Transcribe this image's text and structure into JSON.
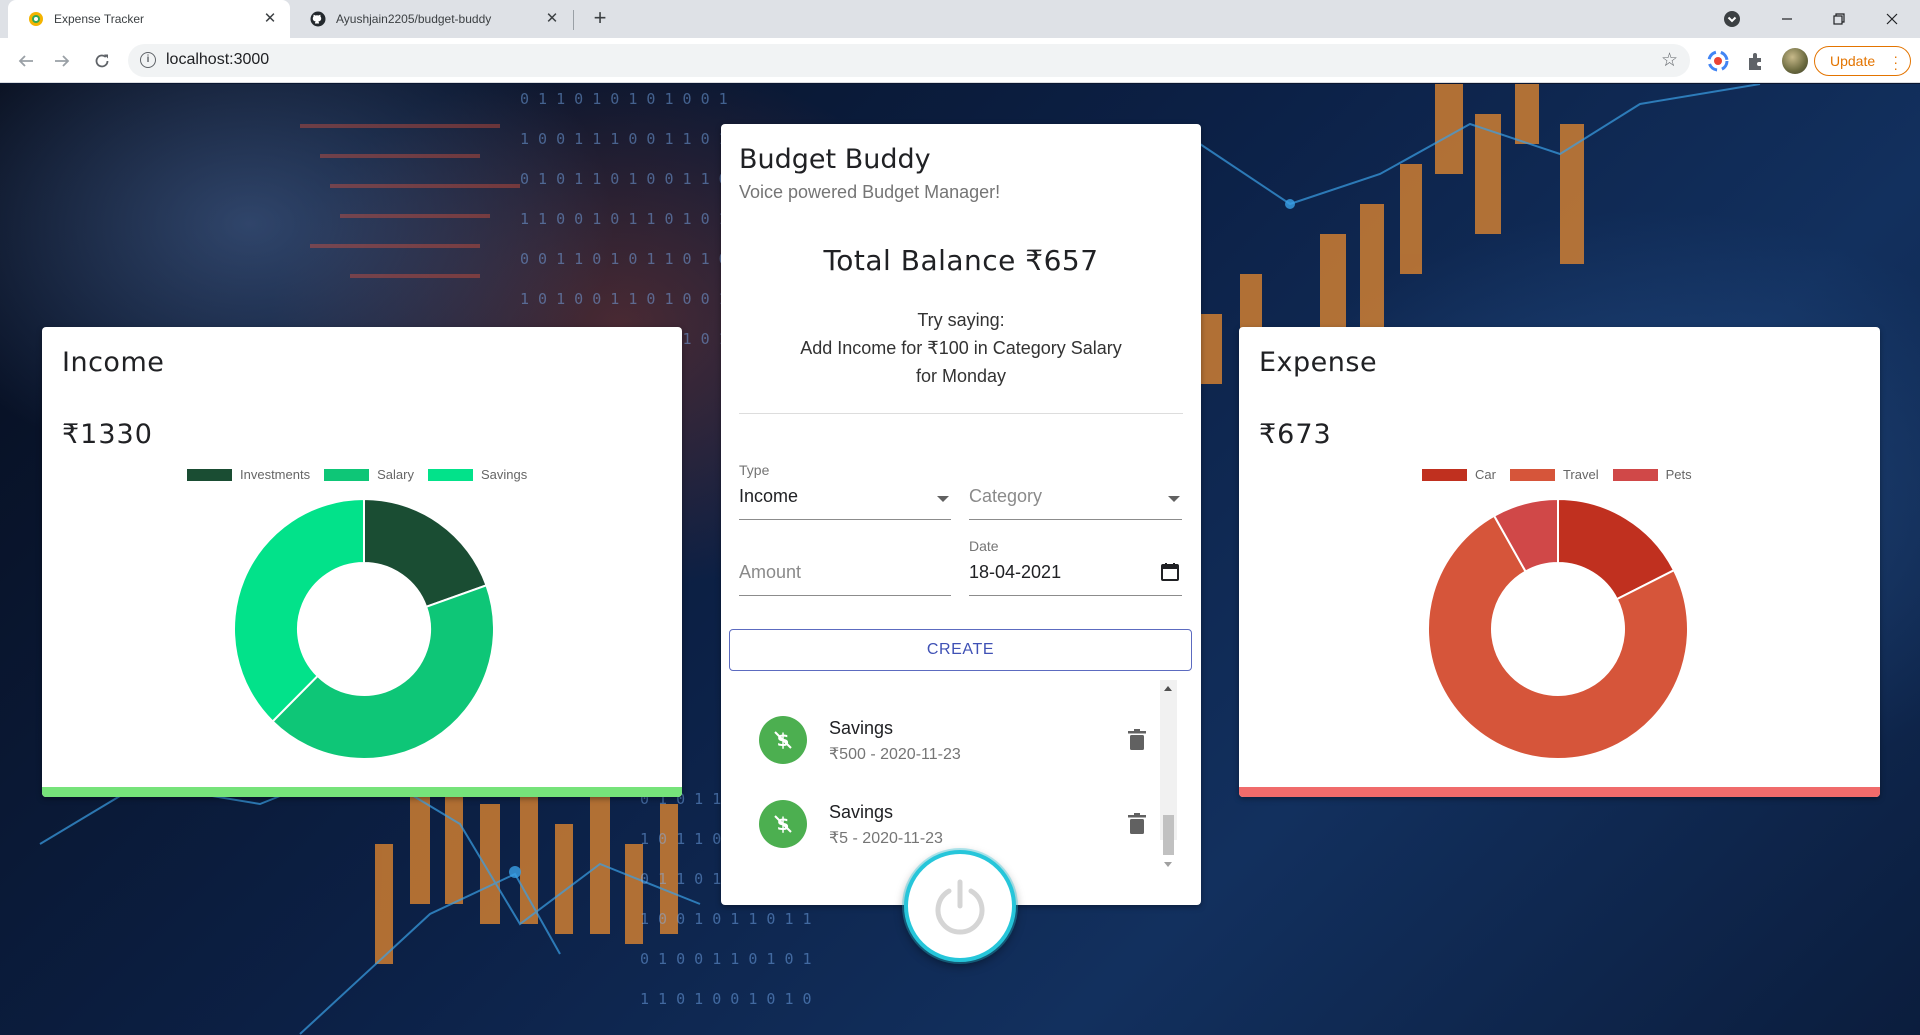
{
  "browser": {
    "tabs": [
      {
        "title": "Expense Tracker",
        "active": true
      },
      {
        "title": "Ayushjain2205/budget-buddy",
        "active": false
      }
    ],
    "url": "localhost:3000",
    "update_label": "Update"
  },
  "app": {
    "title": "Budget Buddy",
    "subtitle": "Voice powered Budget Manager!",
    "balance": "Total Balance ₹657",
    "hint_line1": "Try saying:",
    "hint_line2": "Add Income for ₹100 in Category Salary",
    "hint_line3": "for Monday",
    "form": {
      "type_label": "Type",
      "type_value": "Income",
      "category_placeholder": "Category",
      "amount_placeholder": "Amount",
      "date_label": "Date",
      "date_value": "18-04-2021",
      "create_label": "CREATE"
    },
    "transactions": [
      {
        "category": "Savings",
        "detail": "₹500 - 2020-11-23"
      },
      {
        "category": "Savings",
        "detail": "₹5 - 2020-11-23"
      }
    ]
  },
  "income": {
    "title": "Income",
    "amount": "₹1330",
    "bar_color": "#76e37a"
  },
  "expense": {
    "title": "Expense",
    "amount": "₹673",
    "bar_color": "#f06b6b"
  },
  "chart_data": [
    {
      "type": "pie",
      "variant": "doughnut",
      "title": "",
      "categories": [
        "Investments",
        "Salary",
        "Savings"
      ],
      "values": [
        260,
        570,
        500
      ],
      "colors": [
        "#1a4d33",
        "#0ec677",
        "#02e28a"
      ],
      "legend": "top"
    },
    {
      "type": "pie",
      "variant": "doughnut",
      "title": "",
      "categories": [
        "Car",
        "Travel",
        "Pets"
      ],
      "values": [
        118,
        500,
        55
      ],
      "colors": [
        "#c0301f",
        "#d6553a",
        "#d04848"
      ],
      "legend": "top"
    }
  ]
}
